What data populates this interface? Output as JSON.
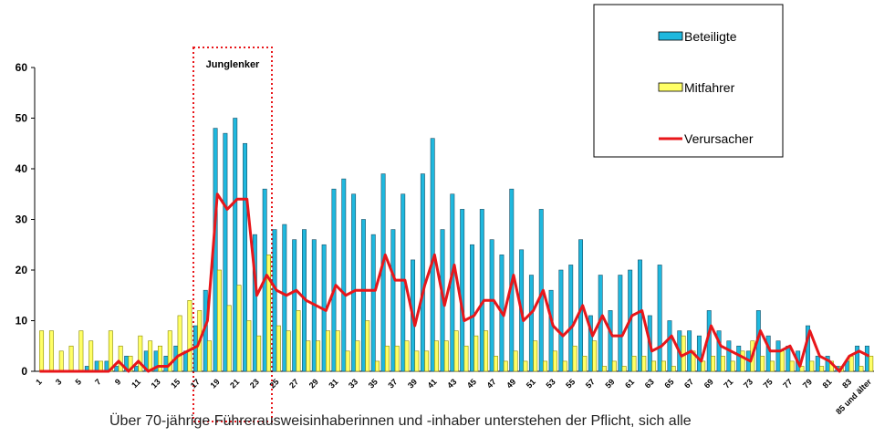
{
  "chart_data": {
    "type": "bar-line",
    "annotation": "Junglenker",
    "note": "Über 70-jährige Führerausweisinhaberinnen und -inhaber unterstehen der Pflicht, sich alle",
    "categories": [
      "1",
      null,
      "3",
      null,
      "5",
      null,
      "7",
      null,
      "9",
      null,
      "11",
      null,
      "13",
      null,
      "15",
      null,
      "17",
      null,
      "19",
      null,
      "21",
      null,
      "23",
      null,
      "25",
      null,
      "27",
      null,
      "29",
      null,
      "31",
      null,
      "33",
      null,
      "35",
      null,
      "37",
      null,
      "39",
      null,
      "41",
      null,
      "43",
      null,
      "45",
      null,
      "47",
      null,
      "49",
      null,
      "51",
      null,
      "53",
      null,
      "55",
      null,
      "57",
      null,
      "59",
      null,
      "61",
      null,
      "63",
      null,
      "65",
      null,
      "67",
      null,
      "69",
      null,
      "71",
      null,
      "73",
      null,
      "75",
      null,
      "77",
      null,
      "79",
      null,
      "81",
      null,
      "83",
      null,
      "85 und älter"
    ],
    "series": [
      {
        "name": "Beteiligte",
        "type": "bar",
        "color": "#1fb8de",
        "values": [
          0,
          0,
          0,
          0,
          0,
          1,
          2,
          2,
          1,
          3,
          1,
          4,
          4,
          3,
          5,
          4,
          9,
          16,
          48,
          47,
          50,
          45,
          27,
          36,
          28,
          29,
          26,
          28,
          26,
          25,
          36,
          38,
          35,
          30,
          27,
          39,
          28,
          35,
          22,
          39,
          46,
          28,
          35,
          32,
          25,
          32,
          26,
          23,
          36,
          24,
          19,
          32,
          16,
          20,
          21,
          26,
          11,
          19,
          12,
          19,
          20,
          22,
          11,
          21,
          10,
          8,
          8,
          7,
          12,
          8,
          6,
          5,
          4,
          12,
          7,
          6,
          5,
          4,
          9,
          3,
          3,
          1,
          2,
          5,
          5
        ]
      },
      {
        "name": "Mitfahrer",
        "type": "bar",
        "color": "#ffff66",
        "values": [
          8,
          8,
          4,
          5,
          8,
          6,
          2,
          8,
          5,
          3,
          7,
          6,
          5,
          8,
          11,
          14,
          12,
          6,
          20,
          13,
          17,
          10,
          7,
          23,
          9,
          8,
          12,
          6,
          6,
          8,
          8,
          4,
          6,
          10,
          2,
          5,
          5,
          6,
          4,
          4,
          6,
          6,
          8,
          5,
          7,
          8,
          3,
          2,
          4,
          2,
          6,
          2,
          4,
          2,
          5,
          3,
          6,
          1,
          2,
          1,
          3,
          3,
          2,
          2,
          1,
          7,
          4,
          2,
          3,
          3,
          2,
          4,
          6,
          3,
          2,
          4,
          2,
          1,
          2,
          1,
          2,
          1,
          3,
          1,
          3
        ]
      },
      {
        "name": "Verursacher",
        "type": "line",
        "color": "#e8161a",
        "values": [
          0,
          0,
          0,
          0,
          0,
          0,
          0,
          0,
          2,
          0,
          2,
          0,
          1,
          1,
          3,
          4,
          5,
          10,
          35,
          32,
          34,
          34,
          15,
          19,
          16,
          15,
          16,
          14,
          13,
          12,
          17,
          15,
          16,
          16,
          16,
          23,
          18,
          18,
          9,
          17,
          23,
          13,
          21,
          10,
          11,
          14,
          14,
          11,
          19,
          10,
          12,
          16,
          9,
          7,
          9,
          13,
          7,
          11,
          7,
          7,
          11,
          12,
          4,
          5,
          7,
          3,
          4,
          2,
          9,
          5,
          4,
          3,
          2,
          8,
          4,
          4,
          5,
          1,
          8,
          3,
          2,
          0,
          3,
          4,
          3
        ]
      }
    ],
    "ylim": [
      0,
      60
    ],
    "yticks": [
      0,
      10,
      20,
      30,
      40,
      50,
      60
    ],
    "grid": false
  }
}
